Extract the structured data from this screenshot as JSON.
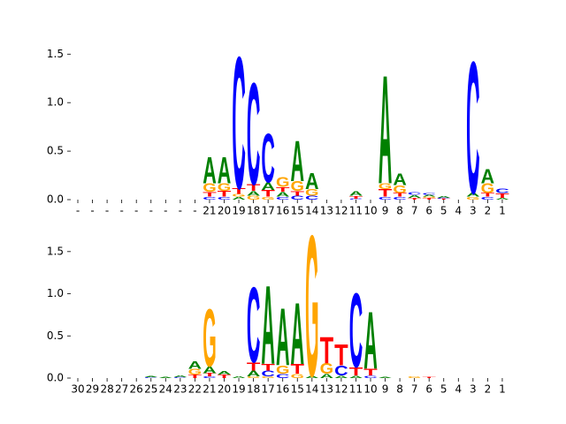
{
  "chart_data": [
    {
      "type": "logo",
      "categories": [
        "-",
        "-",
        "-",
        "-",
        "-",
        "-",
        "-",
        "-",
        "-",
        "21",
        "20",
        "19",
        "18",
        "17",
        "16",
        "15",
        "14",
        "13",
        "12",
        "11",
        "10",
        "9",
        "8",
        "7",
        "6",
        "5",
        "4",
        "3",
        "2",
        "1"
      ],
      "stacks": [
        [],
        [],
        [],
        [],
        [],
        [],
        [],
        [],
        [],
        [
          [
            "C",
            0.03
          ],
          [
            "T",
            0.05
          ],
          [
            "G",
            0.09
          ],
          [
            "A",
            0.28
          ]
        ],
        [
          [
            "C",
            0.03
          ],
          [
            "T",
            0.06
          ],
          [
            "G",
            0.08
          ],
          [
            "A",
            0.28
          ]
        ],
        [
          [
            "A",
            0.03
          ],
          [
            "G",
            0.03
          ],
          [
            "T",
            0.06
          ],
          [
            "C",
            1.4
          ]
        ],
        [
          [
            "G",
            0.04
          ],
          [
            "A",
            0.05
          ],
          [
            "T",
            0.07
          ],
          [
            "C",
            1.08
          ]
        ],
        [
          [
            "G",
            0.03
          ],
          [
            "T",
            0.07
          ],
          [
            "A",
            0.08
          ],
          [
            "C",
            0.52
          ]
        ],
        [
          [
            "C",
            0.03
          ],
          [
            "A",
            0.05
          ],
          [
            "T",
            0.05
          ],
          [
            "G",
            0.1
          ]
        ],
        [
          [
            "C",
            0.04
          ],
          [
            "T",
            0.05
          ],
          [
            "G",
            0.1
          ],
          [
            "A",
            0.43
          ]
        ],
        [
          [
            "C",
            0.04
          ],
          [
            "G",
            0.07
          ],
          [
            "A",
            0.17
          ]
        ],
        [],
        [],
        [
          [
            "C",
            0.01
          ],
          [
            "T",
            0.03
          ],
          [
            "A",
            0.05
          ]
        ],
        [],
        [
          [
            "C",
            0.03
          ],
          [
            "T",
            0.08
          ],
          [
            "G",
            0.06
          ],
          [
            "A",
            1.15
          ]
        ],
        [
          [
            "C",
            0.03
          ],
          [
            "T",
            0.04
          ],
          [
            "G",
            0.08
          ],
          [
            "A",
            0.12
          ]
        ],
        [
          [
            "T",
            0.02
          ],
          [
            "A",
            0.03
          ],
          [
            "C",
            0.03
          ]
        ],
        [
          [
            "T",
            0.02
          ],
          [
            "G",
            0.01
          ],
          [
            "A",
            0.02
          ],
          [
            "C",
            0.02
          ]
        ],
        [
          [
            "T",
            0.01
          ],
          [
            "C",
            0.01
          ],
          [
            "A",
            0.02
          ]
        ],
        [],
        [
          [
            "G",
            0.03
          ],
          [
            "A",
            0.04
          ],
          [
            "C",
            1.4
          ]
        ],
        [
          [
            "C",
            0.03
          ],
          [
            "T",
            0.04
          ],
          [
            "G",
            0.1
          ],
          [
            "A",
            0.15
          ]
        ],
        [
          [
            "A",
            0.02
          ],
          [
            "T",
            0.05
          ],
          [
            "C",
            0.05
          ]
        ]
      ],
      "colors": {
        "A": "#008000",
        "C": "#0000ff",
        "G": "#ffa500",
        "T": "#ff0000"
      },
      "ylim": [
        0,
        1.53
      ],
      "yticks": [
        {
          "value": 0,
          "label": "0.0"
        },
        {
          "value": 0.5,
          "label": "0.5"
        },
        {
          "value": 1,
          "label": "1.0"
        },
        {
          "value": 1.5,
          "label": "1.5"
        }
      ]
    },
    {
      "type": "logo",
      "categories": [
        "30",
        "29",
        "28",
        "27",
        "26",
        "25",
        "24",
        "23",
        "22",
        "21",
        "20",
        "19",
        "18",
        "17",
        "16",
        "15",
        "14",
        "13",
        "12",
        "11",
        "10",
        "9",
        "8",
        "7",
        "6",
        "5",
        "4",
        "3",
        "2",
        "1"
      ],
      "stacks": [
        [],
        [],
        [],
        [],
        [],
        [
          [
            "C",
            0.01
          ],
          [
            "A",
            0.01
          ]
        ],
        [
          [
            "A",
            0.01
          ]
        ],
        [
          [
            "C",
            0.01
          ],
          [
            "A",
            0.02
          ]
        ],
        [
          [
            "T",
            0.04
          ],
          [
            "G",
            0.07
          ],
          [
            "A",
            0.09
          ]
        ],
        [
          [
            "C",
            0.02
          ],
          [
            "T",
            0.04
          ],
          [
            "A",
            0.08
          ],
          [
            "G",
            0.7
          ]
        ],
        [
          [
            "T",
            0.04
          ],
          [
            "A",
            0.04
          ]
        ],
        [
          [
            "A",
            0.02
          ]
        ],
        [
          [
            "G",
            0.02
          ],
          [
            "A",
            0.07
          ],
          [
            "T",
            0.1
          ],
          [
            "C",
            0.92
          ]
        ],
        [
          [
            "G",
            0.02
          ],
          [
            "C",
            0.07
          ],
          [
            "T",
            0.08
          ],
          [
            "A",
            0.96
          ]
        ],
        [
          [
            "C",
            0.05
          ],
          [
            "G",
            0.1
          ],
          [
            "A",
            0.7
          ]
        ],
        [
          [
            "G",
            0.05
          ],
          [
            "T",
            0.12
          ],
          [
            "A",
            0.75
          ]
        ],
        [
          [
            "A",
            0.03
          ],
          [
            "G",
            1.72
          ]
        ],
        [
          [
            "A",
            0.05
          ],
          [
            "G",
            0.13
          ],
          [
            "T",
            0.32
          ]
        ],
        [
          [
            "A",
            0.03
          ],
          [
            "C",
            0.12
          ],
          [
            "T",
            0.26
          ]
        ],
        [
          [
            "A",
            0.03
          ],
          [
            "T",
            0.1
          ],
          [
            "C",
            0.9
          ]
        ],
        [
          [
            "C",
            0.03
          ],
          [
            "T",
            0.08
          ],
          [
            "A",
            0.7
          ]
        ],
        [
          [
            "A",
            0.01
          ]
        ],
        [],
        [
          [
            "G",
            0.02
          ]
        ],
        [
          [
            "T",
            0.01
          ]
        ],
        [],
        [],
        [],
        [],
        []
      ],
      "colors": {
        "A": "#008000",
        "C": "#0000ff",
        "G": "#ffa500",
        "T": "#ff0000"
      },
      "ylim": [
        0,
        1.76
      ],
      "yticks": [
        {
          "value": 0,
          "label": "0.0"
        },
        {
          "value": 0.5,
          "label": "0.5"
        },
        {
          "value": 1,
          "label": "1.0"
        },
        {
          "value": 1.5,
          "label": "1.5"
        }
      ]
    }
  ]
}
